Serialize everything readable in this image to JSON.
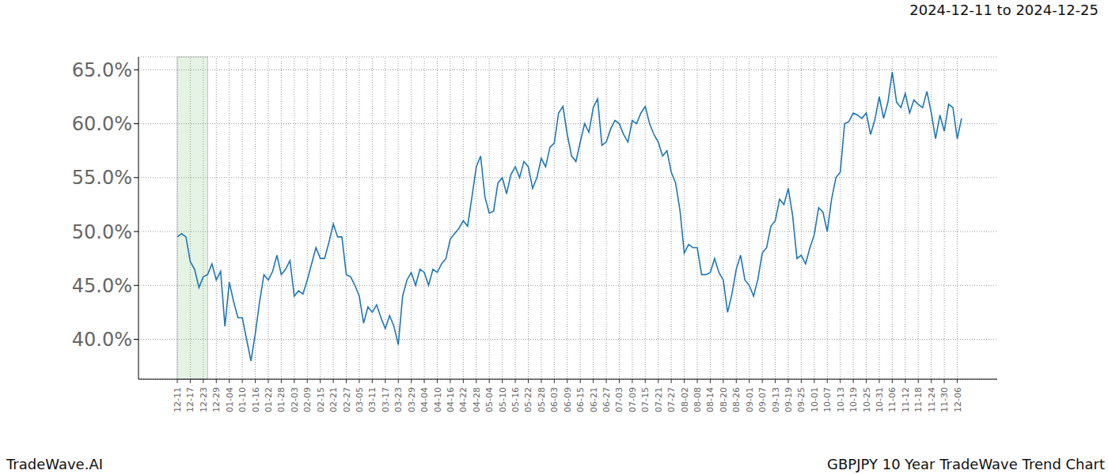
{
  "chart_data": {
    "type": "line",
    "title": "GBPJPY 10 Year TradeWave Trend Chart",
    "subtitle": "2024-12-11 to 2024-12-25",
    "source": "TradeWave.AI",
    "categories": [
      "12-11",
      null,
      null,
      "12-17",
      null,
      null,
      "12-23",
      null,
      null,
      "12-29",
      null,
      null,
      "01-04",
      null,
      null,
      "01-10",
      null,
      null,
      "01-16",
      null,
      null,
      "01-22",
      null,
      null,
      "01-28",
      null,
      null,
      "02-03",
      null,
      null,
      "02-09",
      null,
      null,
      "02-15",
      null,
      null,
      "02-21",
      null,
      null,
      "02-27",
      null,
      null,
      "03-05",
      null,
      null,
      "03-11",
      null,
      null,
      "03-17",
      null,
      null,
      "03-23",
      null,
      null,
      "03-29",
      null,
      null,
      "04-04",
      null,
      null,
      "04-10",
      null,
      null,
      "04-16",
      null,
      null,
      "04-22",
      null,
      null,
      "04-28",
      null,
      null,
      "05-04",
      null,
      null,
      "05-10",
      null,
      null,
      "05-16",
      null,
      null,
      "05-22",
      null,
      null,
      "05-28",
      null,
      null,
      "06-03",
      null,
      null,
      "06-09",
      null,
      null,
      "06-15",
      null,
      null,
      "06-21",
      null,
      null,
      "06-27",
      null,
      null,
      "07-03",
      null,
      null,
      "07-09",
      null,
      null,
      "07-15",
      null,
      null,
      "07-21",
      null,
      null,
      "07-27",
      null,
      null,
      "08-02",
      null,
      null,
      "08-08",
      null,
      null,
      "08-14",
      null,
      null,
      "08-20",
      null,
      null,
      "08-26",
      null,
      null,
      "09-01",
      null,
      null,
      "09-07",
      null,
      null,
      "09-13",
      null,
      null,
      "09-19",
      null,
      null,
      "09-25",
      null,
      null,
      "10-01",
      null,
      null,
      "10-07",
      null,
      null,
      "10-13",
      null,
      null,
      "10-19",
      null,
      null,
      "10-25",
      null,
      null,
      "10-31",
      null,
      null,
      "11-06",
      null,
      null,
      "11-12",
      null,
      null,
      "11-18",
      null,
      null,
      "11-24",
      null,
      null,
      "11-30",
      null,
      null,
      "12-06",
      null
    ],
    "values": [
      49.5,
      49.8,
      49.5,
      47.2,
      46.5,
      44.8,
      45.8,
      46,
      47,
      45.5,
      46.3,
      41.2,
      45.3,
      43.5,
      42,
      42,
      40,
      38,
      40.5,
      43.5,
      46,
      45.5,
      46.3,
      47.8,
      46,
      46.5,
      47.3,
      44,
      44.5,
      44.2,
      45.5,
      47,
      48.5,
      47.5,
      47.5,
      49,
      50.7,
      49.5,
      49.5,
      46,
      45.8,
      45,
      44,
      41.5,
      43,
      42.5,
      43.2,
      42,
      41,
      42.2,
      41.2,
      39.5,
      44,
      45.5,
      46.2,
      45,
      46.5,
      46.2,
      45,
      46.5,
      46.2,
      47,
      47.5,
      49.3,
      49.8,
      50.3,
      51,
      50.5,
      53.2,
      56,
      57,
      53.2,
      51.7,
      51.9,
      54.5,
      55,
      53.5,
      55.3,
      56,
      55,
      56.5,
      56,
      54,
      55,
      56.8,
      56,
      57.8,
      58.2,
      61,
      61.6,
      59,
      57,
      56.5,
      58.3,
      60,
      59.2,
      61.5,
      62.3,
      58,
      58.3,
      59.5,
      60.3,
      60,
      59,
      58.3,
      60.3,
      60,
      61,
      61.6,
      60,
      59,
      58.3,
      57,
      57.5,
      55.5,
      54.5,
      52,
      48,
      48.8,
      48.5,
      48.5,
      46,
      46,
      46.2,
      47.5,
      46.2,
      45.5,
      42.5,
      44.2,
      46.5,
      47.8,
      45.5,
      45,
      44,
      45.6,
      48,
      48.5,
      50.5,
      51,
      53,
      52.5,
      54,
      51.5,
      47.5,
      47.8,
      47,
      48.5,
      49.7,
      52.2,
      51.8,
      50,
      53,
      55,
      55.5,
      60,
      60.2,
      61,
      60.8,
      60.5,
      61,
      59,
      60.4,
      62.5,
      60.5,
      62,
      64.8,
      62,
      61.5,
      62.8,
      61,
      62.2,
      61.8,
      61.5,
      63,
      61,
      58.6,
      60.8,
      59.3,
      61.8,
      61.5,
      58.6,
      60.5
    ],
    "color": "#1f77b4",
    "highlight": {
      "from": "12-11",
      "to": "12-25"
    },
    "ylim": [
      36.3,
      66.2
    ],
    "yticks": [
      {
        "value": 40,
        "label": "40.0%"
      },
      {
        "value": 45,
        "label": "45.0%"
      },
      {
        "value": 50,
        "label": "50.0%"
      },
      {
        "value": 55,
        "label": "55.0%"
      },
      {
        "value": 60,
        "label": "60.0%"
      },
      {
        "value": 65,
        "label": "65.0%"
      }
    ],
    "grid": true
  }
}
